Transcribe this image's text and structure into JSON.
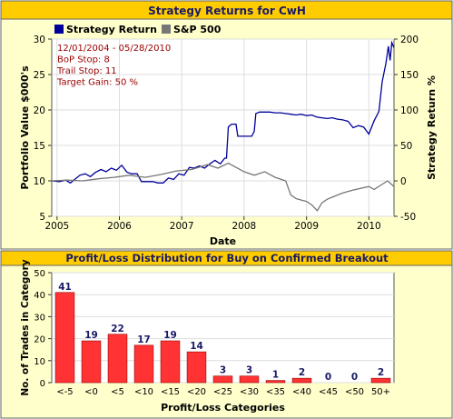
{
  "colors": {
    "panel_bg": "#FFFFCC",
    "title_bg": "#FFCC00",
    "title_text": "#1A1A66",
    "strategy": "#000099",
    "sp500": "#777777",
    "bar_fill": "#FF3333",
    "bar_label": "#1A1A66",
    "info_text": "#990000",
    "grid": "#dddddd"
  },
  "chart_data": [
    {
      "type": "line",
      "title": "Strategy Returns for CwH",
      "xlabel": "Date",
      "ylabel": "Portfolio Value $000's",
      "y2label": "Strategy Return %",
      "x_ticks": [
        "2005",
        "2006",
        "2007",
        "2008",
        "2009",
        "2010"
      ],
      "xlim": [
        "2004-12-01",
        "2010-05-28"
      ],
      "ylim": [
        5,
        30
      ],
      "y_ticks": [
        5,
        10,
        15,
        20,
        25,
        30
      ],
      "y2lim": [
        -50,
        200
      ],
      "y2_ticks": [
        -50,
        0,
        50,
        100,
        150,
        200
      ],
      "grid": true,
      "legend": {
        "position": "top-left"
      },
      "info_box": [
        "12/01/2004 - 05/28/2010",
        "BoP Stop: 8",
        "Trail Stop: 11",
        "Target Gain: 50 %"
      ],
      "series": [
        {
          "name": "Strategy Return",
          "points": [
            [
              "2004-12-01",
              10.0
            ],
            [
              "2005-01-15",
              9.9
            ],
            [
              "2005-02-20",
              10.1
            ],
            [
              "2005-03-20",
              9.7
            ],
            [
              "2005-04-15",
              10.2
            ],
            [
              "2005-05-15",
              10.8
            ],
            [
              "2005-06-15",
              11.0
            ],
            [
              "2005-07-15",
              10.6
            ],
            [
              "2005-08-15",
              11.2
            ],
            [
              "2005-09-15",
              11.6
            ],
            [
              "2005-10-15",
              11.3
            ],
            [
              "2005-11-15",
              11.8
            ],
            [
              "2005-12-15",
              11.5
            ],
            [
              "2006-01-15",
              12.2
            ],
            [
              "2006-02-15",
              11.2
            ],
            [
              "2006-03-15",
              11.0
            ],
            [
              "2006-04-15",
              11.0
            ],
            [
              "2006-05-10",
              9.9
            ],
            [
              "2006-07-15",
              9.9
            ],
            [
              "2006-08-15",
              9.7
            ],
            [
              "2006-09-15",
              9.7
            ],
            [
              "2006-10-15",
              10.4
            ],
            [
              "2006-11-15",
              10.2
            ],
            [
              "2006-12-15",
              11.0
            ],
            [
              "2007-01-15",
              10.8
            ],
            [
              "2007-02-15",
              11.9
            ],
            [
              "2007-03-15",
              11.8
            ],
            [
              "2007-04-15",
              12.1
            ],
            [
              "2007-05-15",
              11.8
            ],
            [
              "2007-06-15",
              12.4
            ],
            [
              "2007-07-15",
              12.9
            ],
            [
              "2007-08-15",
              12.4
            ],
            [
              "2007-09-10",
              13.2
            ],
            [
              "2007-09-20",
              13.2
            ],
            [
              "2007-10-01",
              17.6
            ],
            [
              "2007-10-20",
              18.0
            ],
            [
              "2007-11-15",
              18.0
            ],
            [
              "2007-11-25",
              16.3
            ],
            [
              "2007-12-15",
              16.3
            ],
            [
              "2008-01-15",
              16.3
            ],
            [
              "2008-02-15",
              16.3
            ],
            [
              "2008-03-01",
              17.0
            ],
            [
              "2008-03-10",
              19.5
            ],
            [
              "2008-04-01",
              19.7
            ],
            [
              "2008-05-01",
              19.7
            ],
            [
              "2008-06-01",
              19.7
            ],
            [
              "2008-07-01",
              19.6
            ],
            [
              "2008-08-01",
              19.6
            ],
            [
              "2008-09-01",
              19.5
            ],
            [
              "2008-10-01",
              19.4
            ],
            [
              "2008-11-01",
              19.3
            ],
            [
              "2008-12-01",
              19.4
            ],
            [
              "2009-01-01",
              19.2
            ],
            [
              "2009-02-01",
              19.3
            ],
            [
              "2009-03-01",
              19.0
            ],
            [
              "2009-04-01",
              18.9
            ],
            [
              "2009-05-01",
              18.8
            ],
            [
              "2009-06-01",
              18.9
            ],
            [
              "2009-07-01",
              18.7
            ],
            [
              "2009-08-01",
              18.6
            ],
            [
              "2009-09-01",
              18.4
            ],
            [
              "2009-10-01",
              17.5
            ],
            [
              "2009-11-01",
              17.8
            ],
            [
              "2009-12-01",
              17.6
            ],
            [
              "2010-01-01",
              16.6
            ],
            [
              "2010-02-01",
              18.5
            ],
            [
              "2010-03-01",
              19.8
            ],
            [
              "2010-03-20",
              24.0
            ],
            [
              "2010-04-10",
              26.5
            ],
            [
              "2010-04-25",
              29.0
            ],
            [
              "2010-05-05",
              27.0
            ],
            [
              "2010-05-15",
              29.5
            ],
            [
              "2010-05-28",
              28.8
            ]
          ]
        },
        {
          "name": "S&P 500",
          "points": [
            [
              "2004-12-01",
              10.0
            ],
            [
              "2005-03-01",
              10.1
            ],
            [
              "2005-06-01",
              10.0
            ],
            [
              "2005-09-01",
              10.3
            ],
            [
              "2005-12-01",
              10.5
            ],
            [
              "2006-03-01",
              10.8
            ],
            [
              "2006-06-01",
              10.5
            ],
            [
              "2006-09-01",
              10.9
            ],
            [
              "2006-12-01",
              11.4
            ],
            [
              "2007-03-01",
              11.6
            ],
            [
              "2007-06-01",
              12.3
            ],
            [
              "2007-08-01",
              11.8
            ],
            [
              "2007-10-01",
              12.5
            ],
            [
              "2008-01-01",
              11.3
            ],
            [
              "2008-03-01",
              10.8
            ],
            [
              "2008-05-01",
              11.3
            ],
            [
              "2008-07-01",
              10.5
            ],
            [
              "2008-09-01",
              10.0
            ],
            [
              "2008-10-01",
              8.0
            ],
            [
              "2008-11-01",
              7.5
            ],
            [
              "2008-12-01",
              7.3
            ],
            [
              "2009-01-01",
              7.1
            ],
            [
              "2009-02-01",
              6.6
            ],
            [
              "2009-03-05",
              5.8
            ],
            [
              "2009-04-01",
              6.9
            ],
            [
              "2009-05-01",
              7.4
            ],
            [
              "2009-06-01",
              7.7
            ],
            [
              "2009-08-01",
              8.3
            ],
            [
              "2009-10-01",
              8.7
            ],
            [
              "2010-01-01",
              9.2
            ],
            [
              "2010-02-01",
              8.8
            ],
            [
              "2010-04-20",
              10.0
            ],
            [
              "2010-05-28",
              9.2
            ]
          ]
        }
      ]
    },
    {
      "type": "bar",
      "title": "Profit/Loss Distribution for Buy on Confirmed Breakout",
      "xlabel": "Profit/Loss Categories",
      "ylabel": "No. of Trades in Category",
      "ylim": [
        0,
        50
      ],
      "y_ticks": [
        0,
        10,
        20,
        30,
        40,
        50
      ],
      "grid": true,
      "categories": [
        "<-5",
        "<0",
        "<5",
        "<10",
        "<15",
        "<20",
        "<25",
        "<30",
        "<35",
        "<40",
        "<45",
        "<50",
        "50+"
      ],
      "values": [
        41,
        19,
        22,
        17,
        19,
        14,
        3,
        3,
        1,
        2,
        0,
        0,
        2
      ]
    }
  ]
}
